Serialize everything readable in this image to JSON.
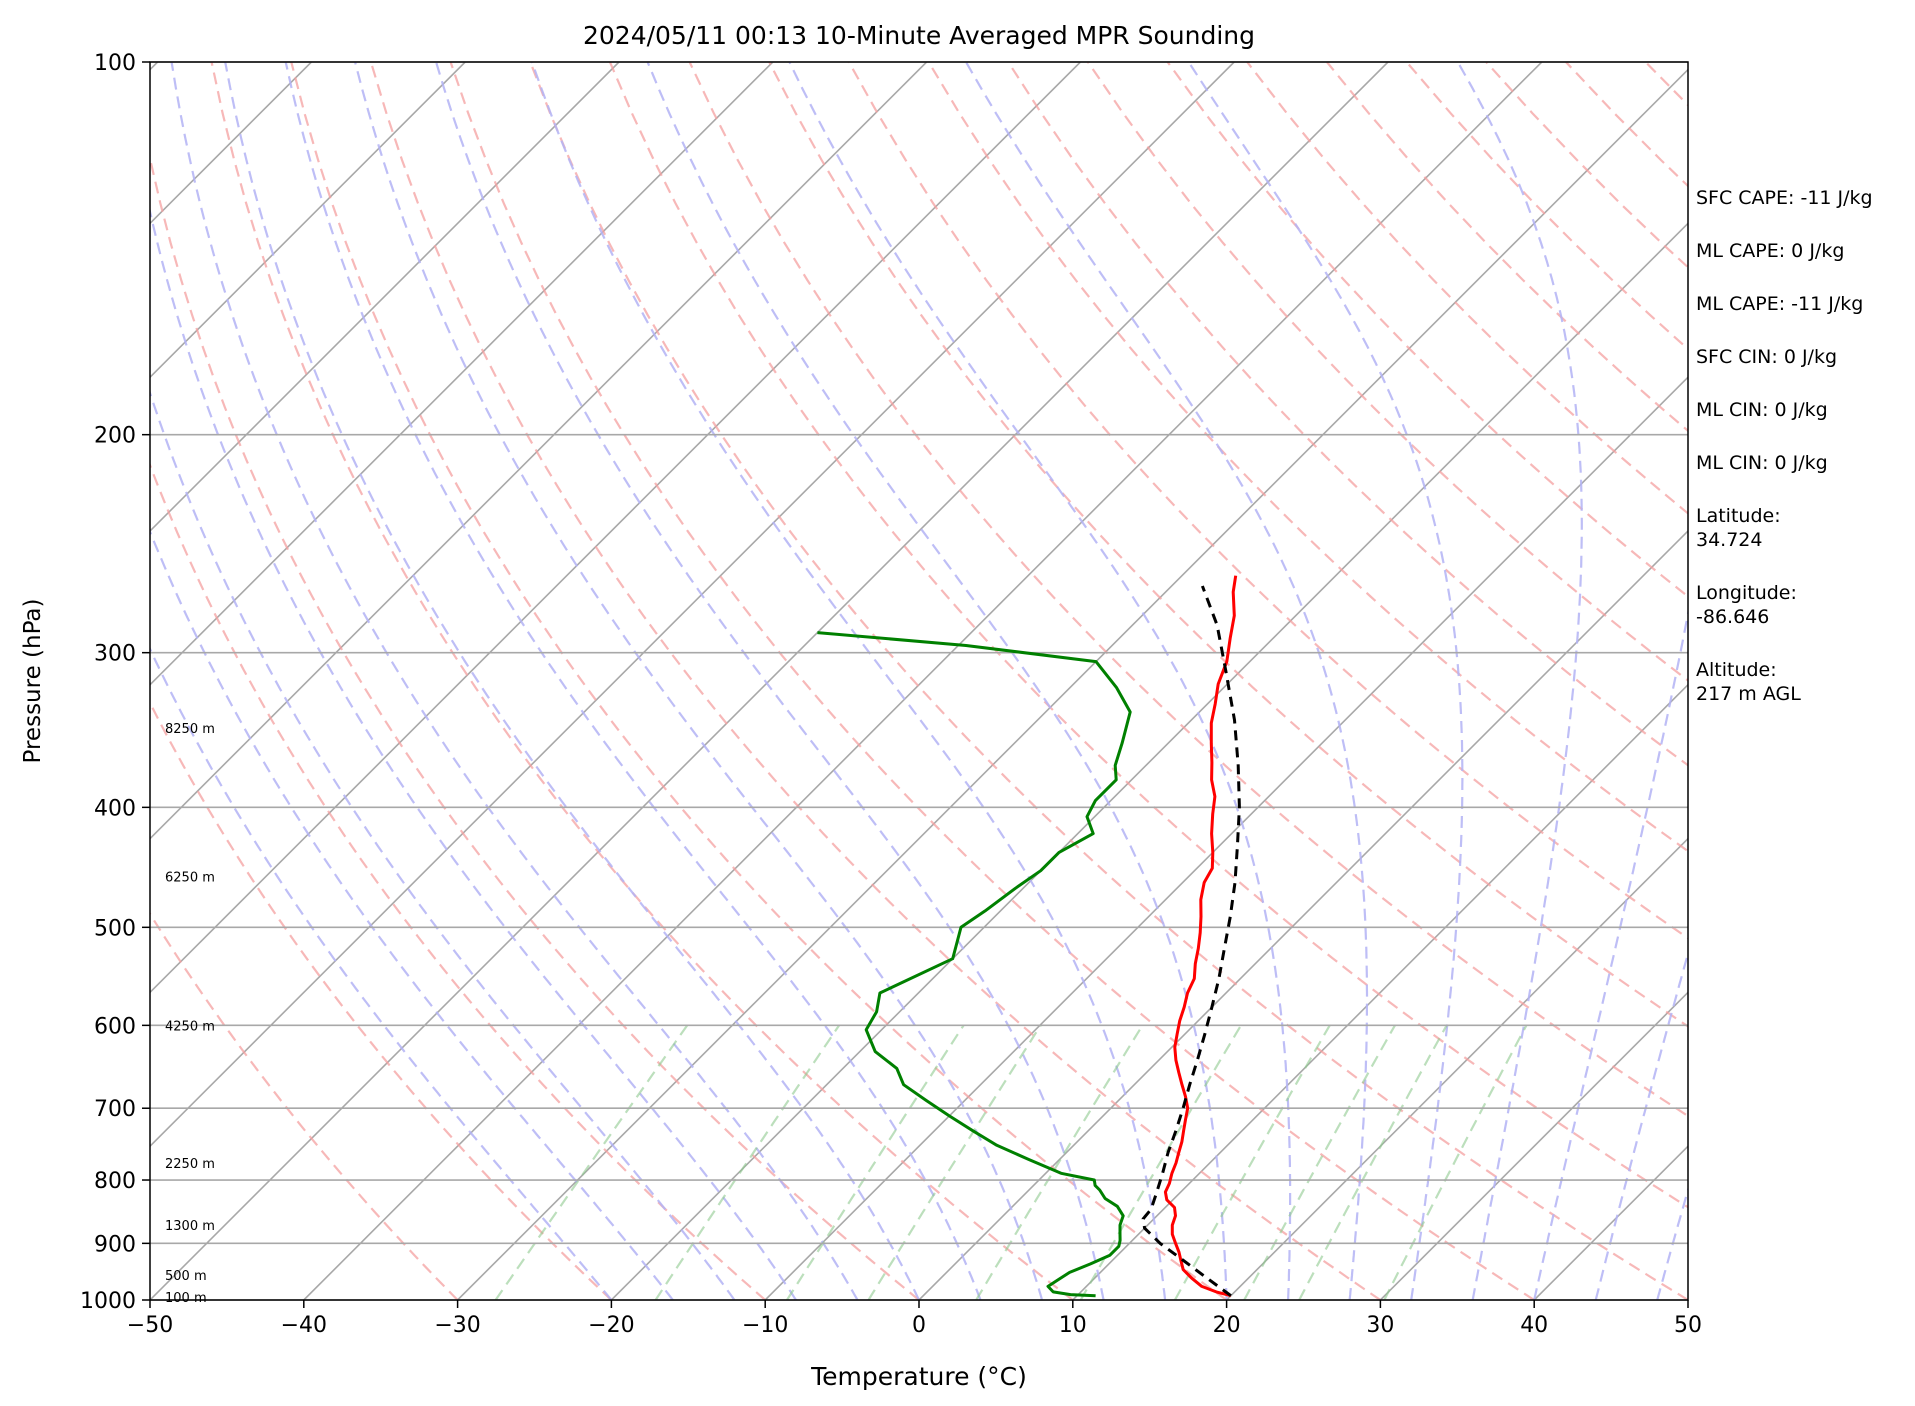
{
  "chart_data": {
    "type": "line",
    "title": "2024/05/11 00:13 10-Minute Averaged MPR Sounding",
    "xlabel": "Temperature (°C)",
    "ylabel": "Pressure (hPa)",
    "xlim": [
      -50,
      50
    ],
    "ylim": [
      1000,
      100
    ],
    "y_scale": "log",
    "skew": true,
    "grid": true,
    "x_ticks": [
      -50,
      -40,
      -30,
      -20,
      -10,
      0,
      10,
      20,
      30,
      40,
      50
    ],
    "x_tick_labels": [
      "−50",
      "−40",
      "−30",
      "−20",
      "−10",
      "0",
      "10",
      "20",
      "30",
      "40",
      "50"
    ],
    "y_ticks": [
      100,
      200,
      300,
      400,
      500,
      600,
      700,
      800,
      900,
      1000
    ],
    "y_tick_labels": [
      "100",
      "200",
      "300",
      "400",
      "500",
      "600",
      "700",
      "800",
      "900",
      "1000"
    ],
    "height_labels": [
      {
        "text": "8250 m",
        "p": 345
      },
      {
        "text": "6250 m",
        "p": 455
      },
      {
        "text": "4250 m",
        "p": 600
      },
      {
        "text": "2250 m",
        "p": 775
      },
      {
        "text": "1300 m",
        "p": 870
      },
      {
        "text": "500 m",
        "p": 955
      },
      {
        "text": "100 m",
        "p": 994
      }
    ],
    "series": [
      {
        "name": "",
        "role": "temperature",
        "color": "#ff0000",
        "style": "solid",
        "p": [
          992,
          985,
          975,
          960,
          945,
          930,
          915,
          900,
          885,
          870,
          855,
          842,
          830,
          818,
          805,
          790,
          775,
          760,
          745,
          730,
          715,
          700,
          685,
          670,
          655,
          640,
          625,
          610,
          595,
          580,
          565,
          550,
          535,
          520,
          505,
          490,
          475,
          460,
          448,
          435,
          420,
          405,
          392,
          380,
          368,
          355,
          342,
          330,
          318,
          305,
          292,
          280,
          268,
          260
        ],
        "t": [
          20.0,
          18.8,
          17.5,
          16.3,
          15.2,
          14.5,
          13.8,
          13.0,
          12.2,
          11.6,
          11.2,
          10.6,
          9.6,
          9.0,
          8.7,
          8.2,
          7.8,
          7.3,
          6.8,
          6.2,
          5.6,
          5.0,
          4.1,
          3.1,
          2.1,
          1.1,
          0.2,
          -0.5,
          -1.2,
          -1.8,
          -2.5,
          -3.0,
          -3.9,
          -4.7,
          -5.6,
          -6.6,
          -7.7,
          -8.6,
          -9.0,
          -10.0,
          -11.3,
          -12.5,
          -13.5,
          -14.8,
          -15.9,
          -17.2,
          -18.5,
          -19.5,
          -20.6,
          -21.5,
          -22.8,
          -24.0,
          -25.6,
          -26.5
        ]
      },
      {
        "name": "",
        "role": "dewpoint",
        "color": "#008000",
        "style": "solid",
        "p": [
          992,
          990,
          985,
          975,
          965,
          950,
          935,
          920,
          905,
          895,
          885,
          870,
          855,
          840,
          828,
          815,
          808,
          800,
          790,
          770,
          750,
          730,
          710,
          690,
          670,
          650,
          630,
          605,
          585,
          565,
          530,
          500,
          485,
          465,
          450,
          435,
          420,
          407,
          395,
          380,
          370,
          355,
          335,
          320,
          305,
          296,
          289
        ],
        "t": [
          11.2,
          9.5,
          8.2,
          7.5,
          7.7,
          8.0,
          8.8,
          9.5,
          9.5,
          9.2,
          8.8,
          8.2,
          7.8,
          6.8,
          5.5,
          4.6,
          4.0,
          3.6,
          1.0,
          -2.0,
          -5.0,
          -7.5,
          -10.0,
          -12.5,
          -15.0,
          -16.5,
          -19.0,
          -21.0,
          -21.5,
          -22.5,
          -20.0,
          -21.5,
          -21.0,
          -20.5,
          -20.0,
          -20.0,
          -19.0,
          -20.5,
          -21.0,
          -21.0,
          -22.0,
          -23.0,
          -24.5,
          -27.0,
          -30.0,
          -39.5,
          -50.0
        ]
      },
      {
        "name": "",
        "role": "parcel",
        "color": "#000000",
        "style": "dashed",
        "p": [
          992,
          960,
          930,
          900,
          875,
          860,
          845,
          820,
          790,
          760,
          730,
          700,
          670,
          640,
          610,
          580,
          550,
          520,
          490,
          460,
          430,
          400,
          370,
          340,
          310,
          285,
          265
        ],
        "t": [
          20.0,
          17.3,
          14.7,
          12.0,
          10.0,
          9.3,
          9.2,
          8.5,
          7.6,
          6.6,
          5.7,
          4.7,
          3.6,
          2.5,
          1.3,
          0.0,
          -1.4,
          -3.0,
          -4.7,
          -6.6,
          -8.8,
          -11.2,
          -14.0,
          -17.2,
          -21.0,
          -24.5,
          -28.0
        ]
      }
    ]
  },
  "info_panel": [
    "SFC CAPE: -11 J/kg",
    "ML CAPE: 0 J/kg",
    "ML CAPE: -11 J/kg",
    "SFC CIN: 0 J/kg",
    "ML CIN: 0 J/kg",
    "ML CIN: 0 J/kg"
  ],
  "station": {
    "latitude_label": "Latitude:",
    "latitude_value": "34.724",
    "longitude_label": "Longitude:",
    "longitude_value": "-86.646",
    "altitude_label": "Altitude:",
    "altitude_value": "217 m AGL"
  }
}
